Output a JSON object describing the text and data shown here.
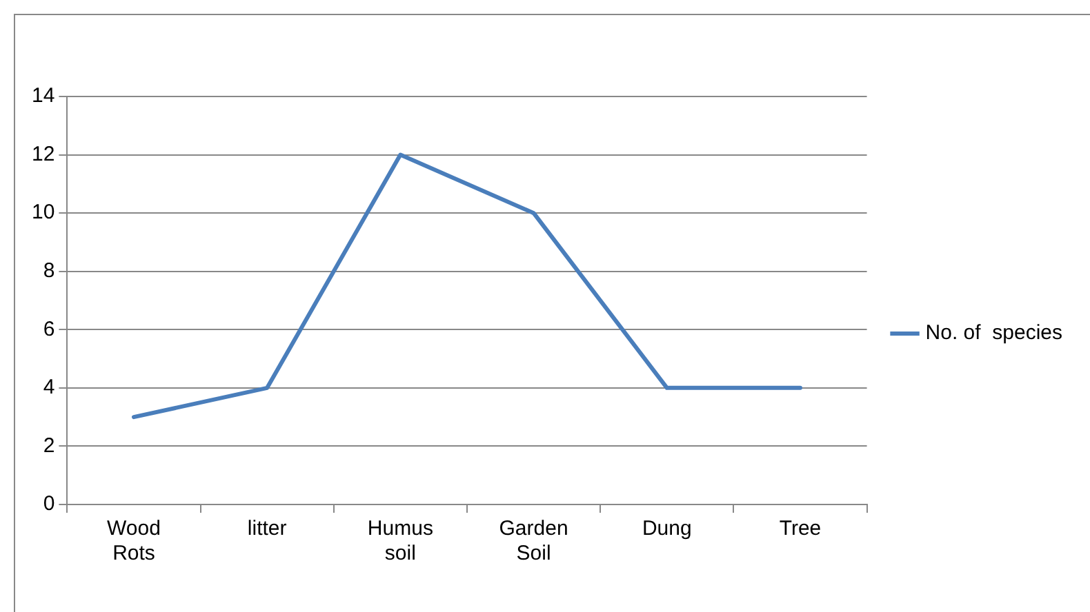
{
  "chart_data": {
    "type": "line",
    "categories": [
      "Wood Rots",
      "litter",
      "Humus soil",
      "Garden Soil",
      "Dung",
      "Tree"
    ],
    "series": [
      {
        "name": "No. of  species",
        "color": "#4a7ebb",
        "values": [
          3,
          4,
          12,
          10,
          4,
          4
        ]
      }
    ],
    "ylim": [
      0,
      14
    ],
    "yticks": [
      0,
      2,
      4,
      6,
      8,
      10,
      12,
      14
    ],
    "grid": "y",
    "legend": "right",
    "marker": "none",
    "line_style": "solid"
  }
}
